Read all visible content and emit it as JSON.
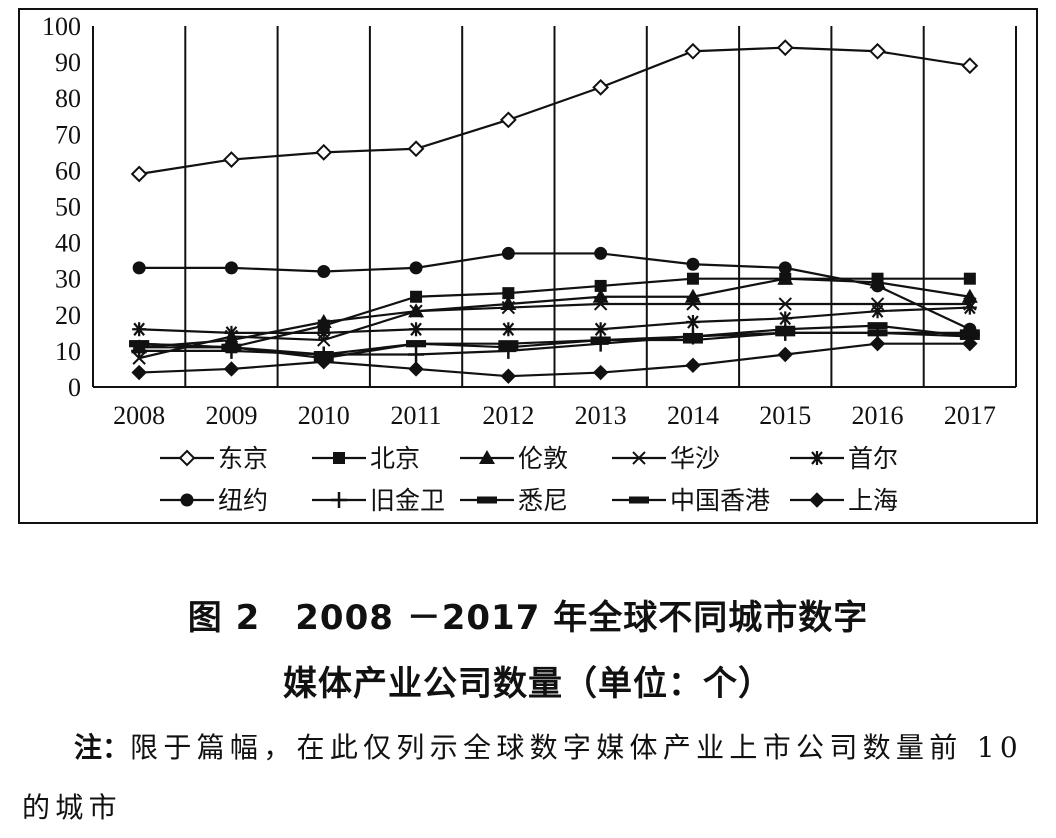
{
  "chart_data": {
    "type": "line",
    "categories": [
      "2008",
      "2009",
      "2010",
      "2011",
      "2012",
      "2013",
      "2014",
      "2015",
      "2016",
      "2017"
    ],
    "ylim": [
      0,
      100
    ],
    "yticks": [
      0,
      10,
      20,
      30,
      40,
      50,
      60,
      70,
      80,
      90,
      100
    ],
    "series": [
      {
        "name": "东京",
        "marker": "diamond-open",
        "values": [
          59,
          63,
          65,
          66,
          74,
          83,
          93,
          94,
          93,
          89
        ]
      },
      {
        "name": "北京",
        "marker": "square",
        "values": [
          11,
          11,
          17,
          25,
          26,
          28,
          30,
          30,
          30,
          30
        ]
      },
      {
        "name": "伦敦",
        "marker": "triangle",
        "values": [
          11,
          13,
          18,
          21,
          23,
          25,
          25,
          30,
          29,
          25
        ]
      },
      {
        "name": "华沙",
        "marker": "x",
        "values": [
          8,
          14,
          13,
          21,
          22,
          23,
          23,
          23,
          23,
          23
        ]
      },
      {
        "name": "首尔",
        "marker": "asterisk",
        "values": [
          16,
          15,
          15,
          16,
          16,
          16,
          18,
          19,
          21,
          22
        ]
      },
      {
        "name": "纽约",
        "marker": "circle",
        "values": [
          33,
          33,
          32,
          33,
          37,
          37,
          34,
          33,
          28,
          16
        ]
      },
      {
        "name": "旧金卫",
        "marker": "plus",
        "values": [
          10,
          10,
          9,
          9,
          10,
          12,
          14,
          15,
          15,
          14
        ]
      },
      {
        "name": "悉尼",
        "marker": "dash",
        "values": [
          12,
          11,
          9,
          12,
          11,
          13,
          13,
          15,
          15,
          15
        ]
      },
      {
        "name": "中国香港",
        "marker": "dash",
        "values": [
          12,
          11,
          8,
          12,
          12,
          13,
          14,
          16,
          17,
          14
        ]
      },
      {
        "name": "上海",
        "marker": "diamond",
        "values": [
          4,
          5,
          7,
          5,
          3,
          4,
          6,
          9,
          12,
          12
        ]
      }
    ]
  },
  "caption": {
    "line1": "图 2　2008 －2017 年全球不同城市数字",
    "line2": "媒体产业公司数量（单位：个）"
  },
  "note": {
    "label": "注：",
    "text": "限于篇幅，在此仅列示全球数字媒体产业上市公司数量前 10 的城市"
  }
}
